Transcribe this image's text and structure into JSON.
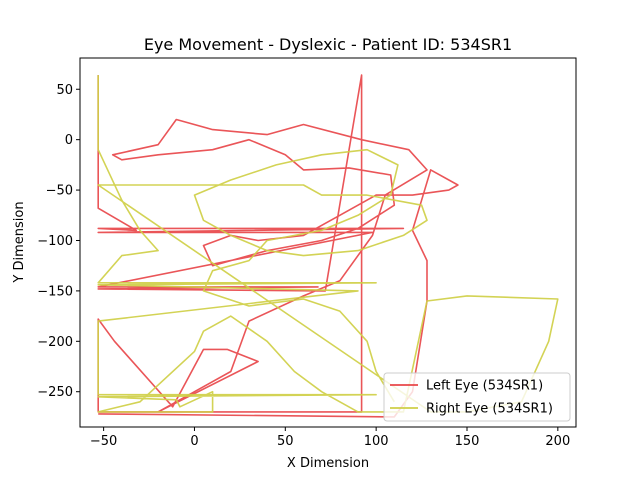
{
  "chart_data": {
    "type": "line",
    "title": "Eye Movement - Dyslexic - Patient ID: 534SR1",
    "xlabel": "X Dimension",
    "ylabel": "Y Dimension",
    "xlim": [
      -63,
      210
    ],
    "ylim": [
      -285,
      81
    ],
    "xticks": [
      -50,
      0,
      50,
      100,
      150,
      200
    ],
    "yticks": [
      50,
      0,
      -50,
      -100,
      -150,
      -200,
      -250
    ],
    "legend_position": "lower right",
    "series": [
      {
        "name": "Left Eye (534SR1)",
        "color": "#e8474a",
        "points": [
          [
            -53,
            64
          ],
          [
            -53,
            -68
          ],
          [
            -32,
            -90
          ],
          [
            -53,
            -88
          ],
          [
            115,
            -88
          ],
          [
            -53,
            -92
          ],
          [
            98,
            -92
          ],
          [
            -53,
            -146
          ],
          [
            68,
            -146
          ],
          [
            -53,
            -148
          ],
          [
            72,
            -150
          ],
          [
            92,
            64
          ],
          [
            92,
            -270
          ],
          [
            -53,
            -270
          ],
          [
            -53,
            -178
          ],
          [
            -44,
            -200
          ],
          [
            -12,
            -265
          ],
          [
            5,
            -208
          ],
          [
            18,
            -208
          ],
          [
            35,
            -220
          ],
          [
            -20,
            -270
          ],
          [
            20,
            -230
          ],
          [
            30,
            -180
          ],
          [
            60,
            -155
          ],
          [
            80,
            -140
          ],
          [
            98,
            -95
          ],
          [
            105,
            -55
          ],
          [
            128,
            -30
          ],
          [
            118,
            -10
          ],
          [
            92,
            0
          ],
          [
            60,
            15
          ],
          [
            40,
            5
          ],
          [
            10,
            10
          ],
          [
            -10,
            20
          ],
          [
            -20,
            -5
          ],
          [
            -45,
            -15
          ],
          [
            -40,
            -20
          ],
          [
            -20,
            -15
          ],
          [
            10,
            -10
          ],
          [
            30,
            0
          ],
          [
            50,
            -15
          ],
          [
            60,
            -30
          ],
          [
            85,
            -28
          ],
          [
            108,
            -35
          ],
          [
            110,
            -65
          ],
          [
            90,
            -88
          ],
          [
            70,
            -100
          ],
          [
            40,
            -110
          ],
          [
            20,
            -120
          ],
          [
            10,
            -125
          ],
          [
            5,
            -105
          ],
          [
            20,
            -95
          ],
          [
            35,
            -100
          ],
          [
            60,
            -95
          ],
          [
            80,
            -75
          ],
          [
            100,
            -55
          ],
          [
            120,
            -55
          ],
          [
            140,
            -50
          ],
          [
            145,
            -45
          ],
          [
            130,
            -30
          ],
          [
            125,
            -60
          ],
          [
            120,
            -90
          ],
          [
            128,
            -120
          ],
          [
            128,
            -160
          ],
          [
            120,
            -250
          ],
          [
            110,
            -275
          ],
          [
            -53,
            -272
          ]
        ]
      },
      {
        "name": "Right Eye (534SR1)",
        "color": "#cfcf47",
        "points": [
          [
            -53,
            64
          ],
          [
            -53,
            -10
          ],
          [
            -40,
            -60
          ],
          [
            -30,
            -90
          ],
          [
            -20,
            -110
          ],
          [
            -40,
            -115
          ],
          [
            -53,
            -142
          ],
          [
            100,
            -142
          ],
          [
            -53,
            -144
          ],
          [
            90,
            -150
          ],
          [
            -53,
            -180
          ],
          [
            -53,
            -253
          ],
          [
            100,
            -253
          ],
          [
            -53,
            -255
          ],
          [
            -10,
            -258
          ],
          [
            -8,
            -265
          ],
          [
            10,
            -250
          ],
          [
            10,
            -270
          ],
          [
            -53,
            -270
          ],
          [
            -30,
            -260
          ],
          [
            0,
            -210
          ],
          [
            5,
            -190
          ],
          [
            20,
            -175
          ],
          [
            40,
            -200
          ],
          [
            55,
            -230
          ],
          [
            70,
            -250
          ],
          [
            90,
            -270
          ],
          [
            115,
            -270
          ],
          [
            128,
            -160
          ],
          [
            150,
            -155
          ],
          [
            200,
            -158
          ],
          [
            195,
            -200
          ],
          [
            180,
            -260
          ],
          [
            150,
            -270
          ],
          [
            130,
            -270
          ],
          [
            -53,
            -45
          ],
          [
            60,
            -45
          ],
          [
            70,
            -55
          ],
          [
            95,
            -55
          ],
          [
            125,
            -65
          ],
          [
            128,
            -80
          ],
          [
            115,
            -95
          ],
          [
            90,
            -110
          ],
          [
            60,
            -115
          ],
          [
            40,
            -110
          ],
          [
            20,
            -95
          ],
          [
            5,
            -80
          ],
          [
            0,
            -55
          ],
          [
            20,
            -40
          ],
          [
            45,
            -25
          ],
          [
            70,
            -15
          ],
          [
            95,
            -10
          ],
          [
            112,
            -25
          ],
          [
            108,
            -55
          ],
          [
            90,
            -75
          ],
          [
            70,
            -90
          ],
          [
            40,
            -100
          ],
          [
            30,
            -120
          ],
          [
            10,
            -130
          ],
          [
            5,
            -150
          ],
          [
            30,
            -165
          ],
          [
            60,
            -158
          ],
          [
            80,
            -170
          ],
          [
            95,
            -200
          ],
          [
            100,
            -230
          ],
          [
            110,
            -260
          ]
        ]
      }
    ]
  }
}
